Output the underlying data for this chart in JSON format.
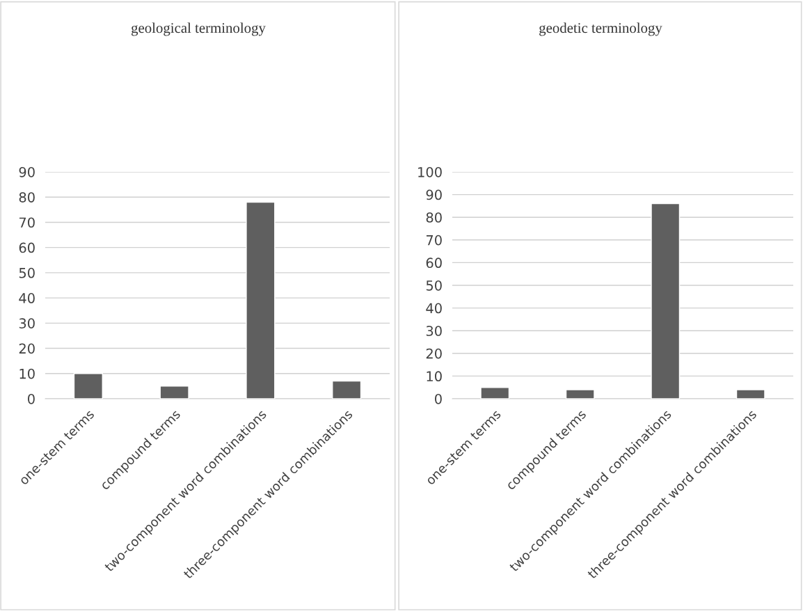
{
  "chart_data": [
    {
      "type": "bar",
      "title": "geological terminology",
      "categories": [
        "one-stem terms",
        "compound terms",
        "two-component word combinations",
        "three-component word combinations"
      ],
      "values": [
        10,
        5,
        78,
        7
      ],
      "color": "#5f5f5f",
      "ylim": [
        0,
        90
      ],
      "yticks": [
        0,
        10,
        20,
        30,
        40,
        50,
        60,
        70,
        80,
        90
      ],
      "grid": "y"
    },
    {
      "type": "bar",
      "title": "geodetic terminology",
      "categories": [
        "one-stem terms",
        "compound terms",
        "two-component word combinations",
        "three-component word combinations"
      ],
      "values": [
        5,
        4,
        86,
        4
      ],
      "color": "#5f5f5f",
      "ylim": [
        0,
        100
      ],
      "yticks": [
        0,
        10,
        20,
        30,
        40,
        50,
        60,
        70,
        80,
        90,
        100
      ],
      "grid": "y"
    }
  ]
}
